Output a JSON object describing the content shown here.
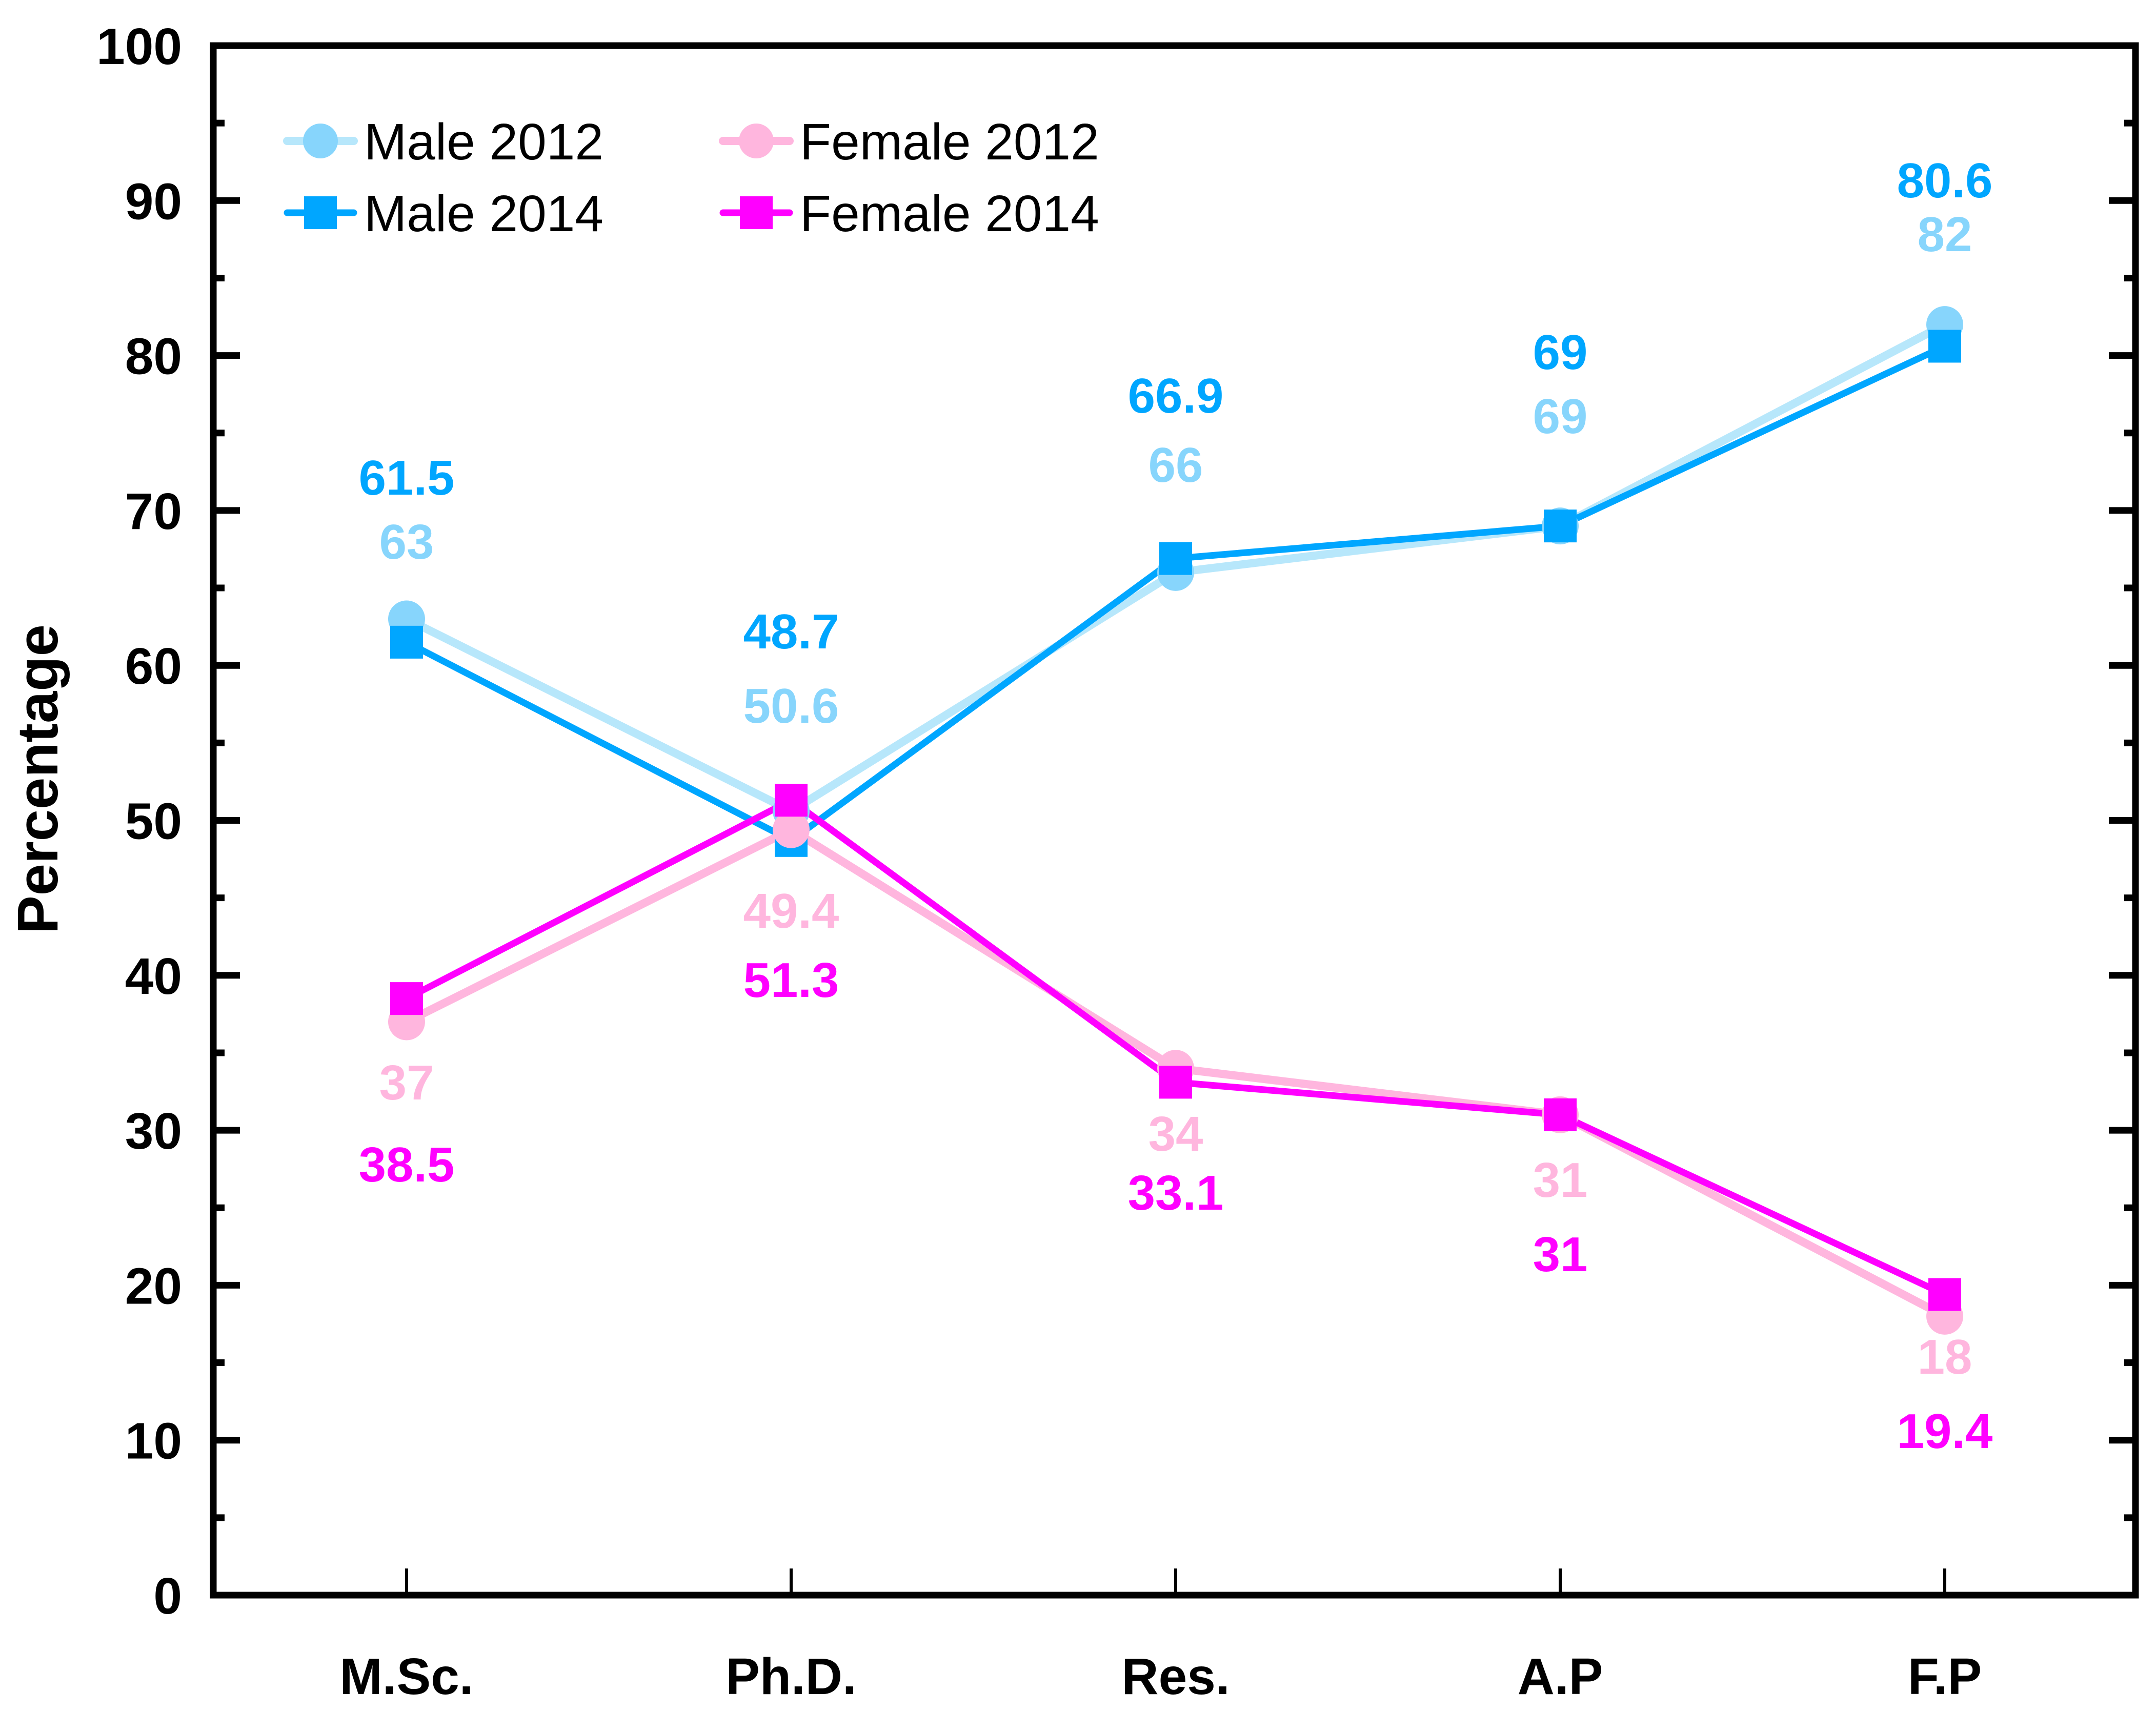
{
  "chart_data": {
    "type": "line",
    "title": "",
    "xlabel": "",
    "ylabel": "Percentage",
    "ylim": [
      0,
      100
    ],
    "yticks": [
      0,
      10,
      20,
      30,
      40,
      50,
      60,
      70,
      80,
      90,
      100
    ],
    "ytick_labels": [
      "0",
      "10",
      "20",
      "30",
      "40",
      "50",
      "60",
      "70",
      "80",
      "90",
      "100"
    ],
    "categories": [
      "M.Sc.",
      "Ph.D.",
      "Res.",
      "A.P",
      "F.P"
    ],
    "grid": false,
    "legend": {
      "position": "top-left",
      "columns": 2
    },
    "series": [
      {
        "name": "Male 2012",
        "marker": "circle",
        "color": "#87D5FC",
        "line_color": "#B7E7FB",
        "values": [
          63,
          50.6,
          66,
          69,
          82
        ],
        "labels": [
          "63",
          "50.6",
          "66",
          "69",
          "82"
        ],
        "label_font_weight": "bold"
      },
      {
        "name": "Male 2014",
        "marker": "square",
        "color": "#00A6FF",
        "line_color": "#00A6FF",
        "values": [
          61.5,
          48.7,
          66.9,
          69,
          80.6
        ],
        "labels": [
          "61.5",
          "48.7",
          "66.9",
          "69",
          "80.6"
        ],
        "label_font_weight": "bold"
      },
      {
        "name": "Female 2012",
        "marker": "circle",
        "color": "#FFB6DE",
        "line_color": "#FFB6DE",
        "values": [
          37,
          49.4,
          34,
          31,
          18
        ],
        "labels": [
          "37",
          "49.4",
          "34",
          "31",
          "18"
        ],
        "label_font_weight": "bold"
      },
      {
        "name": "Female 2014",
        "marker": "square",
        "color": "#FF00FF",
        "line_color": "#FF00FF",
        "values": [
          38.5,
          51.3,
          33.1,
          31,
          19.4
        ],
        "labels": [
          "38.5",
          "51.3",
          "33.1",
          "31",
          "19.4"
        ],
        "label_font_weight": "bold"
      }
    ]
  }
}
